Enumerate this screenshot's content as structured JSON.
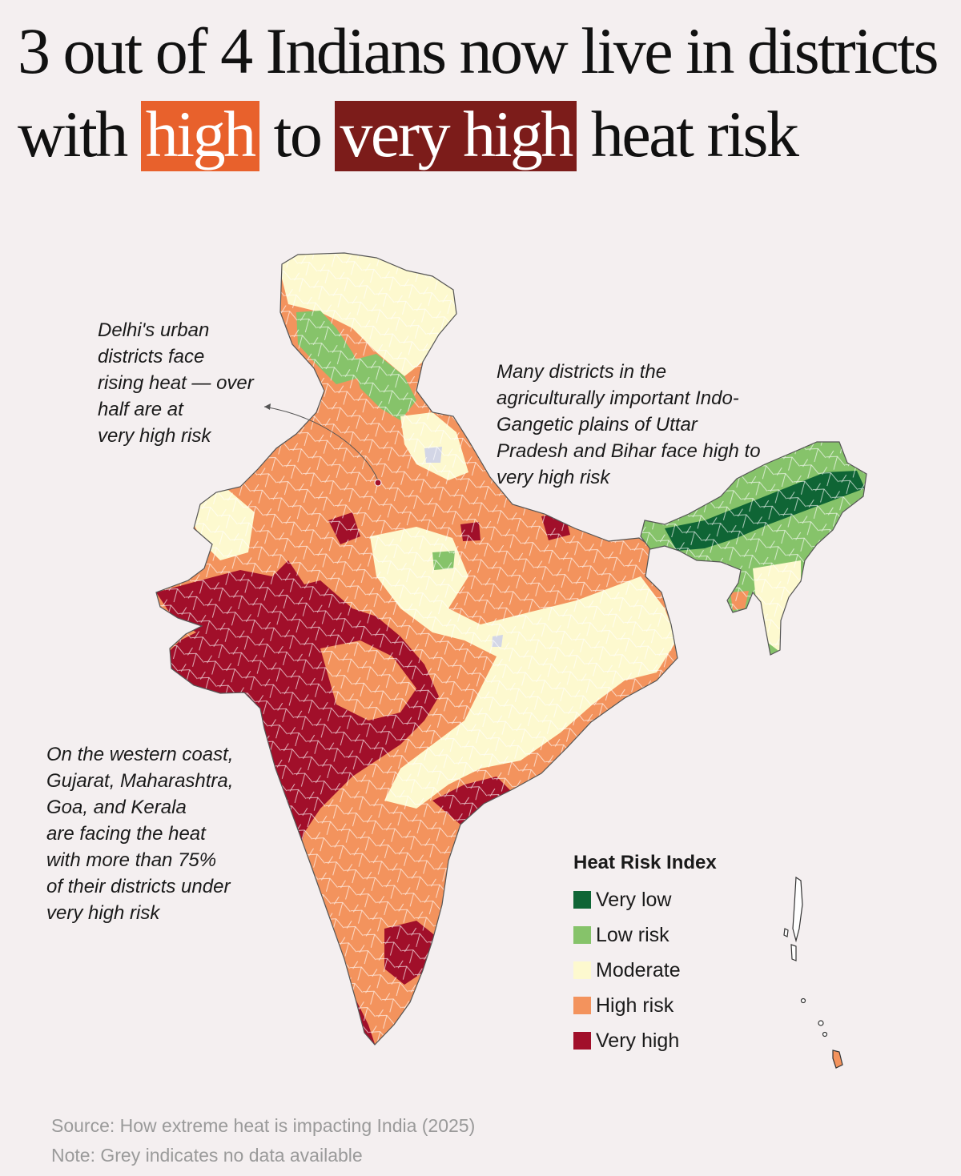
{
  "title": {
    "part1": "3 out of 4 Indians now live in districts with",
    "high": "high",
    "to": "to",
    "very_high": "very high",
    "part2": "heat risk"
  },
  "colors": {
    "very_low": "#0f6535",
    "low": "#86c36a",
    "moderate": "#fdf9cf",
    "high": "#f3935d",
    "very_high": "#a10f2a",
    "no_data": "#d3d6e6",
    "highlight_high": "#e8612c",
    "highlight_very_high": "#7c1c1a"
  },
  "annotations": {
    "delhi": "Delhi's urban\ndistricts face\nrising heat — over\nhalf are at\nvery high risk",
    "gangetic": "Many districts in the\nagriculturally important Indo-\nGangetic plains of Uttar\nPradesh and Bihar face high to\nvery high risk",
    "western": "On the western coast,\nGujarat, Maharashtra,\nGoa, and Kerala\nare facing the heat\nwith more than 75%\nof their districts under\nvery high risk"
  },
  "legend": {
    "title": "Heat Risk Index",
    "items": [
      {
        "label": "Very low",
        "color": "#0f6535"
      },
      {
        "label": "Low risk",
        "color": "#86c36a"
      },
      {
        "label": "Moderate",
        "color": "#fdf9cf"
      },
      {
        "label": "High risk",
        "color": "#f3935d"
      },
      {
        "label": "Very high",
        "color": "#a10f2a"
      }
    ]
  },
  "footer": {
    "source": "Source: How extreme heat is impacting India (2025)",
    "note": "Note: Grey indicates no data available"
  }
}
